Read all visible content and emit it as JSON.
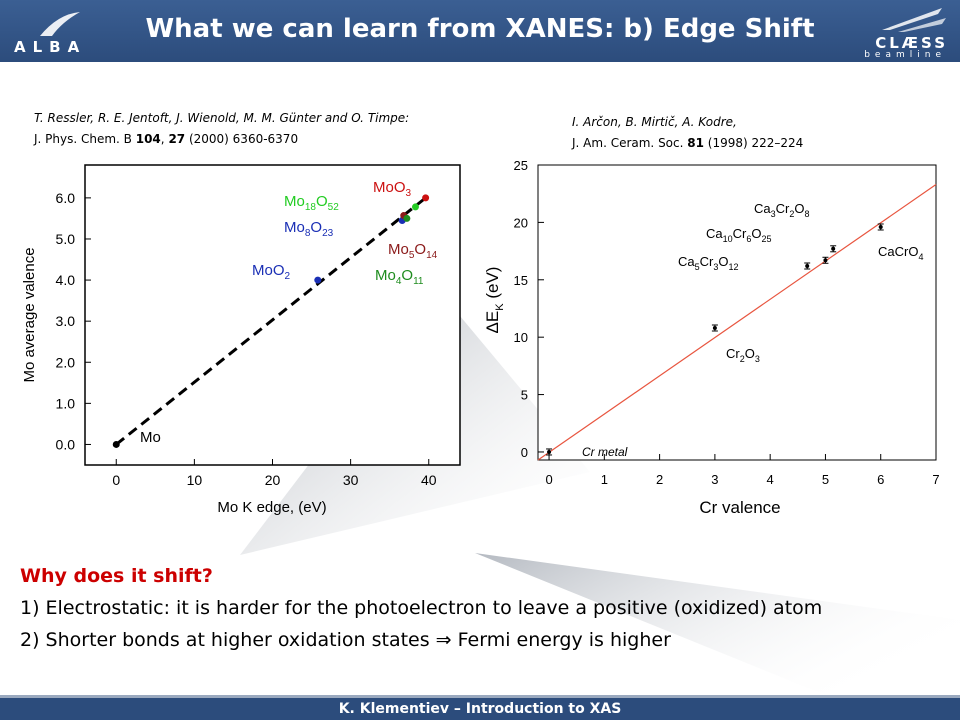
{
  "slide": {
    "title": "What we can learn from XANES: b) Edge Shift",
    "logo_left": "ALBA",
    "logo_right_brand": "CLÆSS",
    "logo_right_sub": "beamline",
    "footer": "K. Klementiev – Introduction to XAS"
  },
  "citation_left": {
    "authors": "T. Ressler, R. E. Jentoft, J. Wienold, M. M. Günter and O. Timpe:",
    "journal": "J. Phys. Chem. B ",
    "volume": "104",
    "issue": "27",
    "rest": " (2000) 6360-6370"
  },
  "citation_right": {
    "authors": "I. Arčon, B. Mirtič, A. Kodre,",
    "journal": "J. Am. Ceram. Soc. ",
    "volume": "81",
    "rest": " (1998) 222–224"
  },
  "chart_data": [
    {
      "type": "scatter",
      "xlabel": "Mo K edge, (eV)",
      "ylabel": "Mo average valence",
      "xlim": [
        -4,
        44
      ],
      "ylim": [
        -0.5,
        6.8
      ],
      "xticks": [
        0,
        10,
        20,
        30,
        40
      ],
      "yticks": [
        "0.0",
        "1.0",
        "2.0",
        "3.0",
        "4.0",
        "5.0",
        "6.0"
      ],
      "points": [
        {
          "x": 0,
          "y": 0,
          "label": "Mo",
          "color": "#000000"
        },
        {
          "x": 25.8,
          "y": 4.0,
          "label": "MoO₂",
          "color": "#1a2fb5"
        },
        {
          "x": 36.6,
          "y": 5.45,
          "label": "Mo₈O₂₃",
          "color": "#1a2fb5"
        },
        {
          "x": 36.8,
          "y": 5.57,
          "label": "Mo₅O₁₄",
          "color": "#8b1a1a"
        },
        {
          "x": 38.3,
          "y": 5.78,
          "label": "Mo₁₈O₅₂",
          "color": "#22cc22"
        },
        {
          "x": 37.2,
          "y": 5.5,
          "label": "Mo₄O₁₁",
          "color": "#1e8c1e"
        },
        {
          "x": 39.6,
          "y": 6.0,
          "label": "MoO₃",
          "color": "#cc1111"
        }
      ],
      "fit_line": {
        "x": [
          0,
          39.6
        ],
        "y": [
          0,
          6.0
        ]
      }
    },
    {
      "type": "scatter",
      "xlabel": "Cr valence",
      "ylabel": "ΔE_K (eV)",
      "xlim": [
        -0.2,
        7
      ],
      "ylim": [
        -0.7,
        25
      ],
      "xticks": [
        0,
        1,
        2,
        3,
        4,
        5,
        6,
        7
      ],
      "yticks": [
        0,
        5,
        10,
        15,
        20,
        25
      ],
      "points": [
        {
          "x": 0,
          "y": 0,
          "label": "Cr metal"
        },
        {
          "x": 3,
          "y": 10.8,
          "label": "Cr₂O₃"
        },
        {
          "x": 4.67,
          "y": 16.2,
          "label": "Ca₅Cr₃O₁₂"
        },
        {
          "x": 5.0,
          "y": 16.7,
          "label": "Ca₁₀Cr₆O₂₅"
        },
        {
          "x": 5.14,
          "y": 17.7,
          "label": "Ca₃Cr₂O₈"
        },
        {
          "x": 6,
          "y": 19.6,
          "label": "CaCrO₄"
        }
      ],
      "fit_line": {
        "x": [
          -0.2,
          7
        ],
        "y": [
          -0.7,
          23.3
        ],
        "color": "#e8553f"
      }
    }
  ],
  "left_labels": {
    "mo": "Mo",
    "moo2": "MoO",
    "moo2_sub": "2",
    "mo8": "Mo",
    "mo8_s1": "8",
    "mo8_o": "O",
    "mo8_s2": "23",
    "mo18": "Mo",
    "mo18_s1": "18",
    "mo18_o": "O",
    "mo18_s2": "52",
    "moo3": "MoO",
    "moo3_sub": "3",
    "mo5": "Mo",
    "mo5_s1": "5",
    "mo5_o": "O",
    "mo5_s2": "14",
    "mo4": "Mo",
    "mo4_s1": "4",
    "mo4_o": "O",
    "mo4_s2": "11"
  },
  "right_labels": {
    "ca3": [
      "Ca",
      "3",
      "Cr",
      "2",
      "O",
      "8"
    ],
    "ca10": [
      "Ca",
      "10",
      "Cr",
      "6",
      "O",
      "25"
    ],
    "ca5": [
      "Ca",
      "5",
      "Cr",
      "3",
      "O",
      "12"
    ],
    "cacro4": [
      "CaCrO",
      "4"
    ],
    "cr2o3": [
      "Cr",
      "2",
      "O",
      "3"
    ],
    "crmetal": "Cr metal",
    "ylabel_main": "ΔE",
    "ylabel_sub": "K",
    "ylabel_rest": " (eV)"
  },
  "body": {
    "question": "Why does it shift?",
    "line1": "1) Electrostatic: it is harder for the photoelectron to leave a positive (oxidized) atom",
    "line2_a": "2) Shorter bonds at higher oxidation states ",
    "line2_arrow": "⇒",
    "line2_b": " Fermi energy is higher"
  }
}
